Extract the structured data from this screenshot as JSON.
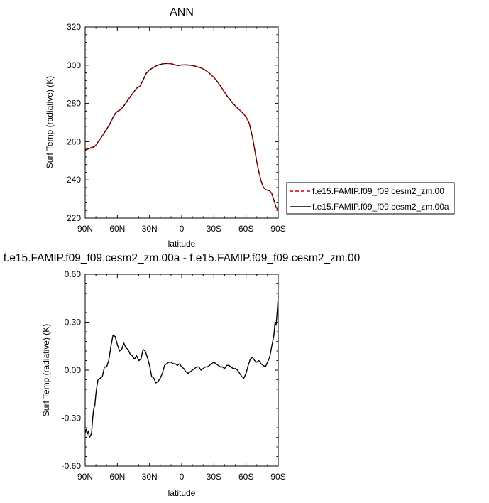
{
  "chart_data": [
    {
      "type": "line",
      "title": "ANN",
      "xlabel": "latitude",
      "ylabel": "Surf Temp (radiative) (K)",
      "xlim": [
        90,
        -90
      ],
      "ylim": [
        220,
        320
      ],
      "x_ticks": [
        90,
        60,
        30,
        0,
        -30,
        -60,
        -90
      ],
      "x_tick_labels": [
        "90N",
        "60N",
        "30N",
        "0",
        "30S",
        "60S",
        "90S"
      ],
      "y_ticks": [
        220,
        240,
        260,
        280,
        300,
        320
      ],
      "y_tick_labels": [
        "220",
        "240",
        "260",
        "280",
        "300",
        "320"
      ],
      "legend_position": "right",
      "series": [
        {
          "name": "f.e15.FAMIP.f09_f09.cesm2_zm.00",
          "color": "#cc0000",
          "dash": true,
          "x": [
            90,
            88,
            86,
            84,
            82,
            80,
            78,
            76,
            74,
            72,
            70,
            68,
            66,
            64,
            62,
            60,
            57,
            54,
            51,
            48,
            45,
            42,
            39,
            36,
            33,
            30,
            27,
            24,
            21,
            18,
            15,
            12,
            9,
            6,
            3,
            0,
            -3,
            -6,
            -9,
            -12,
            -15,
            -18,
            -21,
            -24,
            -27,
            -30,
            -33,
            -36,
            -39,
            -42,
            -45,
            -48,
            -51,
            -54,
            -57,
            -60,
            -63,
            -66,
            -68,
            -70,
            -72,
            -74,
            -76,
            -78,
            -80,
            -82,
            -84,
            -86,
            -88,
            -90
          ],
          "y": [
            255.8,
            256.4,
            256.9,
            257.0,
            257.3,
            258.2,
            259.8,
            261.4,
            263.0,
            264.7,
            266.3,
            268.0,
            270.2,
            272.6,
            274.6,
            275.6,
            276.7,
            278.6,
            281.0,
            283.4,
            285.7,
            287.9,
            288.9,
            292.1,
            295.8,
            297.6,
            298.6,
            299.6,
            300.3,
            300.8,
            301.0,
            300.9,
            300.7,
            300.1,
            299.8,
            300.1,
            300.2,
            300.1,
            299.9,
            299.6,
            299.1,
            298.6,
            297.8,
            296.6,
            295.2,
            293.6,
            291.6,
            289.3,
            286.7,
            284.1,
            282.0,
            279.9,
            278.1,
            276.6,
            275.0,
            273.0,
            269.5,
            262.5,
            256.0,
            249.5,
            244.0,
            239.5,
            236.4,
            235.0,
            234.6,
            234.3,
            232.9,
            229.3,
            225.6,
            224.0
          ]
        },
        {
          "name": "f.e15.FAMIP.f09_f09.cesm2_zm.00a",
          "color": "#000000",
          "dash": false,
          "x": [
            90,
            88,
            86,
            84,
            82,
            80,
            78,
            76,
            74,
            72,
            70,
            68,
            66,
            64,
            62,
            60,
            57,
            54,
            51,
            48,
            45,
            42,
            39,
            36,
            33,
            30,
            27,
            24,
            21,
            18,
            15,
            12,
            9,
            6,
            3,
            0,
            -3,
            -6,
            -9,
            -12,
            -15,
            -18,
            -21,
            -24,
            -27,
            -30,
            -33,
            -36,
            -39,
            -42,
            -45,
            -48,
            -51,
            -54,
            -57,
            -60,
            -63,
            -66,
            -68,
            -70,
            -72,
            -74,
            -76,
            -78,
            -80,
            -82,
            -84,
            -86,
            -88,
            -90
          ],
          "y": [
            255.5,
            256.0,
            256.5,
            256.7,
            257.1,
            258.2,
            259.8,
            261.4,
            263.1,
            264.8,
            266.5,
            268.2,
            270.4,
            272.8,
            274.8,
            275.8,
            276.8,
            278.7,
            281.1,
            283.5,
            285.8,
            288.0,
            289.0,
            292.2,
            295.8,
            297.6,
            298.6,
            299.6,
            300.2,
            300.7,
            300.9,
            300.9,
            300.7,
            300.1,
            299.8,
            300.1,
            300.2,
            300.1,
            299.9,
            299.6,
            299.1,
            298.6,
            297.8,
            296.6,
            295.2,
            293.6,
            291.6,
            289.3,
            286.7,
            284.1,
            282.0,
            279.9,
            278.1,
            276.6,
            275.0,
            273.0,
            269.5,
            262.5,
            256.0,
            249.5,
            244.1,
            239.5,
            236.4,
            235.0,
            234.6,
            234.3,
            232.9,
            229.3,
            225.6,
            224.3
          ]
        }
      ]
    },
    {
      "type": "line",
      "title": "f.e15.FAMIP.f09_f09.cesm2_zm.00a - f.e15.FAMIP.f09_f09.cesm2_zm.00",
      "xlabel": "latitude",
      "ylabel": "Surf Temp (radiative) (K)",
      "xlim": [
        90,
        -90
      ],
      "ylim": [
        -0.6,
        0.6
      ],
      "x_ticks": [
        90,
        60,
        30,
        0,
        -30,
        -60,
        -90
      ],
      "x_tick_labels": [
        "90N",
        "60N",
        "30N",
        "0",
        "30S",
        "60S",
        "90S"
      ],
      "y_ticks": [
        -0.6,
        -0.3,
        0.0,
        0.3,
        0.6
      ],
      "y_tick_labels": [
        "-0.60",
        "-0.30",
        "0.00",
        "0.30",
        "0.60"
      ],
      "series": [
        {
          "color": "#000000",
          "dash": false,
          "x": [
            90,
            89,
            88,
            87,
            86,
            85,
            84,
            83,
            82,
            81,
            80,
            79,
            78,
            76,
            74,
            72,
            70,
            68,
            66,
            64,
            62,
            60,
            58,
            56,
            54,
            52,
            50,
            48,
            46,
            44,
            42,
            40,
            38,
            36,
            34,
            32,
            30,
            28,
            26,
            24,
            22,
            20,
            18,
            16,
            14,
            12,
            10,
            8,
            6,
            4,
            2,
            0,
            -2,
            -4,
            -6,
            -8,
            -10,
            -12,
            -14,
            -16,
            -18,
            -20,
            -22,
            -24,
            -26,
            -28,
            -30,
            -32,
            -34,
            -36,
            -38,
            -40,
            -42,
            -44,
            -46,
            -48,
            -50,
            -52,
            -54,
            -56,
            -58,
            -60,
            -62,
            -64,
            -66,
            -68,
            -70,
            -72,
            -74,
            -76,
            -78,
            -80,
            -82,
            -84,
            -86,
            -87,
            -88,
            -89,
            -90
          ],
          "y": [
            -0.39,
            -0.37,
            -0.4,
            -0.38,
            -0.42,
            -0.41,
            -0.39,
            -0.3,
            -0.24,
            -0.22,
            -0.15,
            -0.1,
            -0.06,
            -0.05,
            -0.04,
            0.02,
            0.02,
            0.06,
            0.15,
            0.22,
            0.21,
            0.16,
            0.12,
            0.13,
            0.17,
            0.14,
            0.13,
            0.1,
            0.09,
            0.07,
            0.09,
            0.06,
            0.07,
            0.13,
            0.12,
            0.08,
            0.03,
            -0.04,
            -0.05,
            -0.08,
            -0.07,
            -0.05,
            -0.02,
            0.03,
            0.04,
            0.05,
            0.05,
            0.04,
            0.04,
            0.03,
            0.04,
            0.02,
            0.01,
            -0.01,
            -0.02,
            -0.01,
            0.0,
            0.01,
            0.02,
            0.02,
            0.0,
            0.01,
            0.02,
            0.02,
            0.03,
            0.04,
            0.05,
            0.04,
            0.03,
            0.02,
            0.02,
            0.01,
            0.03,
            0.03,
            0.02,
            0.01,
            0.01,
            0.0,
            -0.02,
            -0.04,
            -0.05,
            -0.02,
            0.03,
            0.07,
            0.08,
            0.06,
            0.05,
            0.06,
            0.04,
            0.03,
            0.02,
            0.05,
            0.08,
            0.15,
            0.22,
            0.3,
            0.28,
            0.36,
            0.46
          ]
        }
      ]
    }
  ]
}
